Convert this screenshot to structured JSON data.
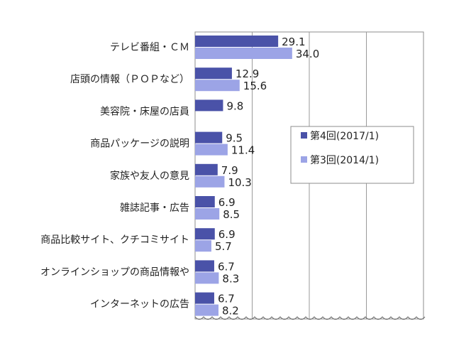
{
  "chart_data": {
    "type": "bar",
    "orientation": "horizontal",
    "categories": [
      "テレビ番組・ＣＭ",
      "店頭の情報（ＰＯＰなど）",
      "美容院・床屋の店員",
      "商品パッケージの説明",
      "家族や友人の意見",
      "雑誌記事・広告",
      "商品比較サイト、クチコミサイト",
      "オンラインショップの商品情報や",
      "インターネットの広告"
    ],
    "series": [
      {
        "name": "第4回(2017/1)",
        "color": "#4a52a8",
        "values": [
          29.1,
          12.9,
          9.8,
          9.5,
          7.9,
          6.9,
          6.9,
          6.7,
          6.7
        ]
      },
      {
        "name": "第3回(2014/1)",
        "color": "#9ca4e6",
        "values": [
          34.0,
          15.6,
          null,
          11.4,
          10.3,
          8.5,
          5.7,
          8.3,
          8.2
        ]
      }
    ],
    "value_labels": [
      [
        "29.1",
        "34.0"
      ],
      [
        "12.9",
        "15.6"
      ],
      [
        "9.8",
        ""
      ],
      [
        "9.5",
        "11.4"
      ],
      [
        "7.9",
        "10.3"
      ],
      [
        "6.9",
        "8.5"
      ],
      [
        "6.9",
        "5.7"
      ],
      [
        "6.7",
        "8.3"
      ],
      [
        "6.7",
        "8.2"
      ]
    ],
    "xlim": [
      0,
      80
    ],
    "grid": true,
    "legend_position": "right",
    "title": "",
    "xlabel": "",
    "ylabel": ""
  }
}
